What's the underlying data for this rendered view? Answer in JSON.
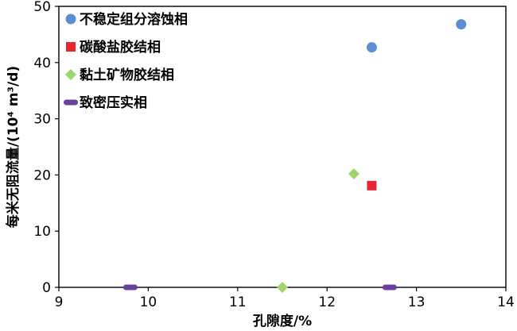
{
  "chart_data": {
    "type": "scatter",
    "xlabel": "孔隙度/%",
    "ylabel": "每米无阻流量/(10⁴ m³/d)",
    "xlim": [
      9,
      14
    ],
    "ylim": [
      0,
      50
    ],
    "xticks": [
      9,
      10,
      11,
      12,
      13,
      14
    ],
    "yticks": [
      0,
      10,
      20,
      30,
      40,
      50
    ],
    "grid": false,
    "legend_position": "top-left",
    "series": [
      {
        "name": "不稳定组分溶蚀相",
        "marker": "circle",
        "color": "#5b8fd4",
        "points": [
          {
            "x": 12.5,
            "y": 42.7
          },
          {
            "x": 13.5,
            "y": 46.8
          }
        ]
      },
      {
        "name": "碳酸盐胶结相",
        "marker": "square",
        "color": "#e8262d",
        "points": [
          {
            "x": 12.5,
            "y": 18.1
          }
        ]
      },
      {
        "name": "黏土矿物胶结相",
        "marker": "diamond",
        "color": "#9ed46b",
        "points": [
          {
            "x": 12.3,
            "y": 20.2
          },
          {
            "x": 11.5,
            "y": 0
          }
        ]
      },
      {
        "name": "致密压实相",
        "marker": "dash",
        "color": "#6a3fa0",
        "points": [
          {
            "x": 9.8,
            "y": 0
          },
          {
            "x": 12.7,
            "y": 0
          }
        ]
      }
    ]
  }
}
